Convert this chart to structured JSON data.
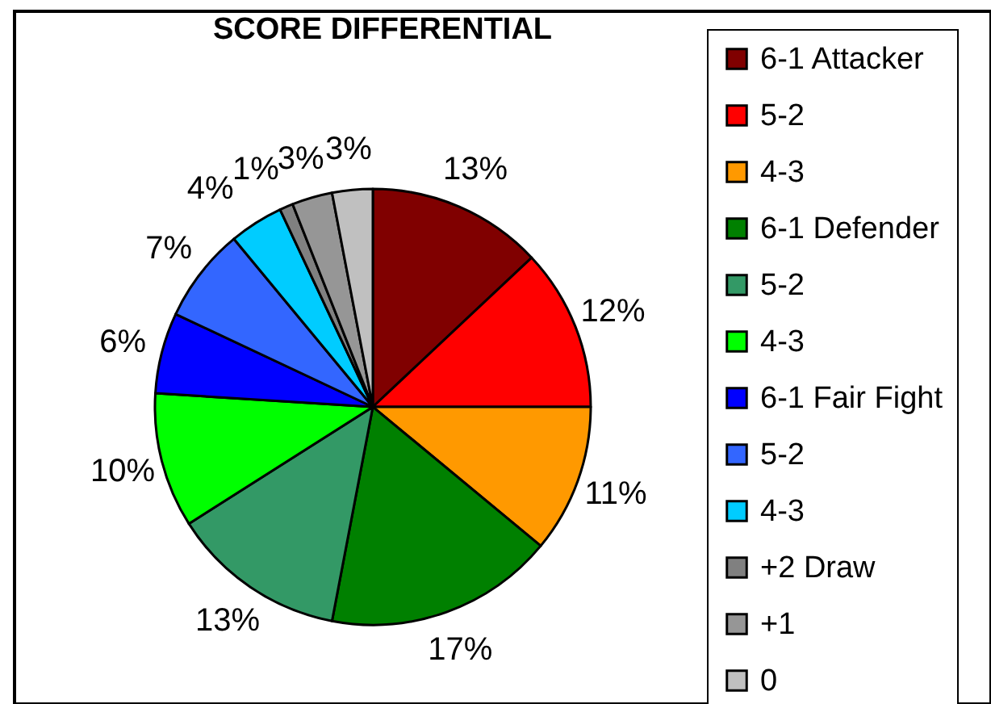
{
  "chart_data": {
    "type": "pie",
    "title": "SCORE DIFFERENTIAL",
    "categories": [
      "6-1 Attacker",
      "5-2",
      "4-3",
      "6-1 Defender",
      "5-2",
      "4-3",
      "6-1 Fair Fight",
      "5-2",
      "4-3",
      "+2 Draw",
      "+1",
      "0"
    ],
    "values": [
      13,
      12,
      11,
      17,
      13,
      10,
      6,
      7,
      4,
      1,
      3,
      3
    ],
    "colors": [
      "#800000",
      "#ff0000",
      "#ff9900",
      "#008000",
      "#339966",
      "#00ff00",
      "#0000ff",
      "#3366ff",
      "#00ccff",
      "#808080",
      "#969696",
      "#c0c0c0"
    ],
    "value_labels": [
      "13%",
      "12%",
      "11%",
      "17%",
      "13%",
      "10%",
      "6%",
      "7%",
      "4%",
      "1%",
      "3%",
      "3%"
    ],
    "legend": "right"
  }
}
